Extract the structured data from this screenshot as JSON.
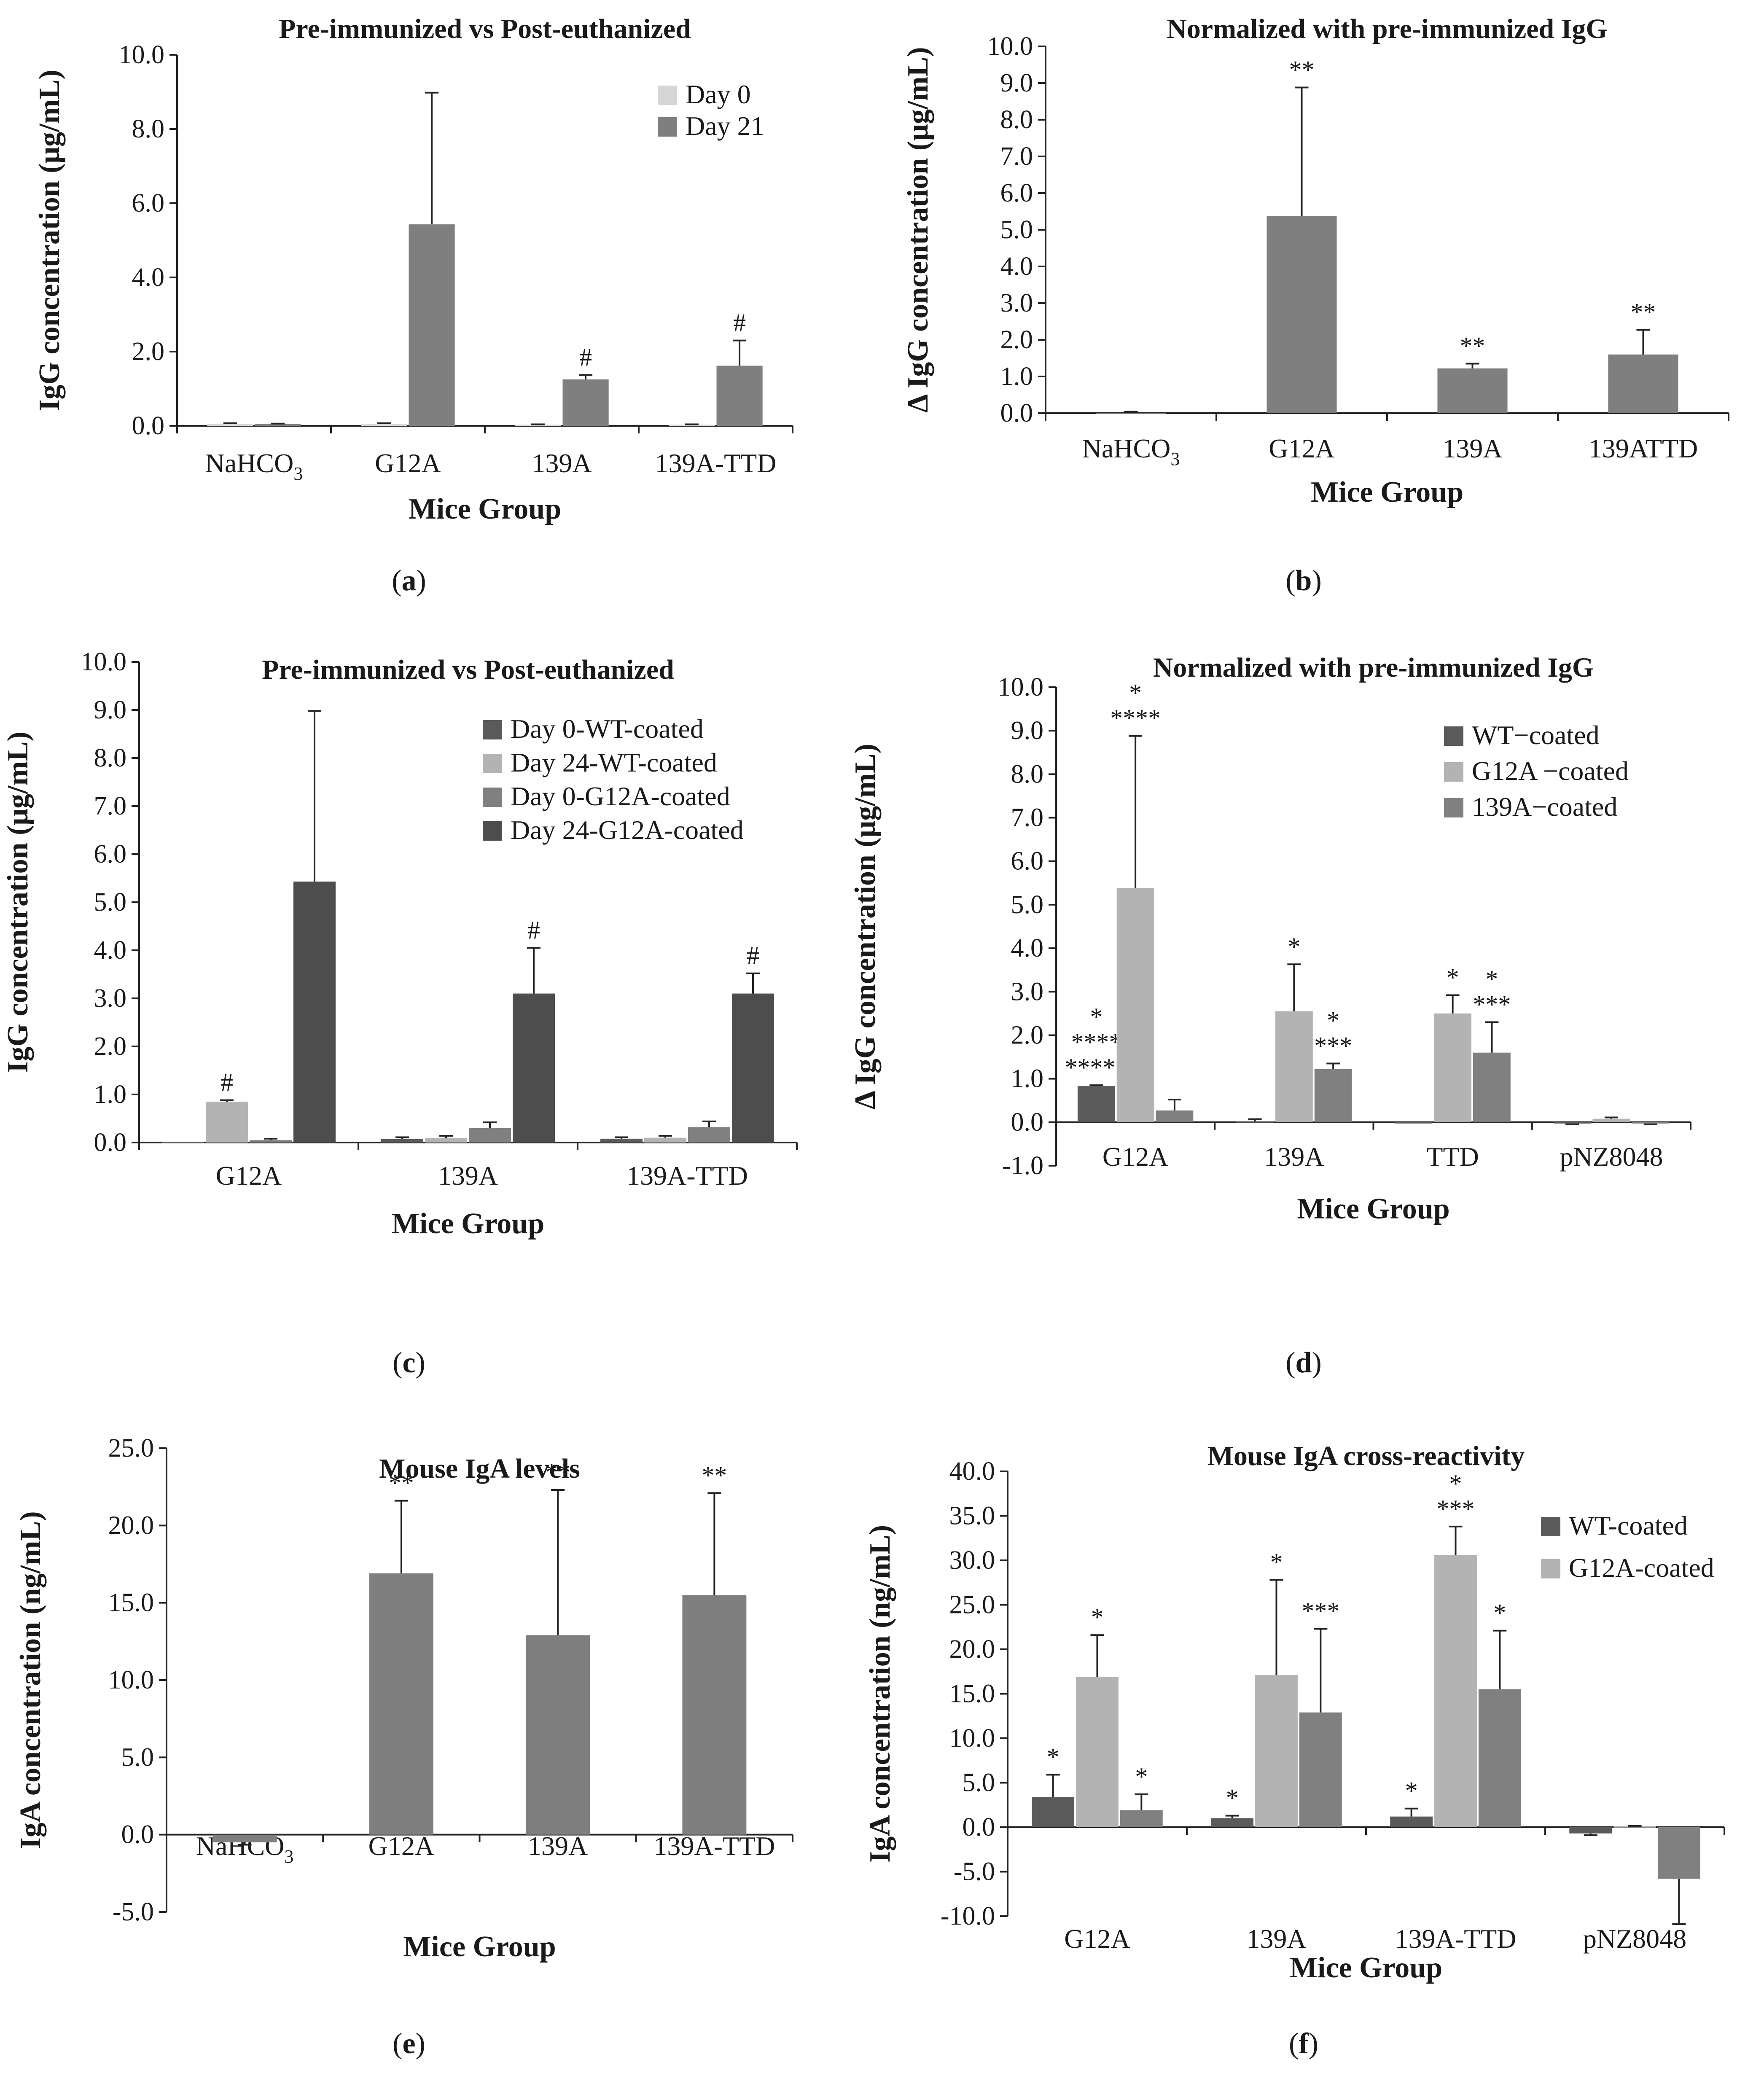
{
  "colors": {
    "day0_light": "#d6d6d6",
    "grey_mid": "#7f7f7f",
    "dark": "#4d4d4d",
    "light": "#b3b3b3",
    "grey_mid2": "#8c8c8c"
  },
  "chart_data": [
    {
      "id": "a",
      "caption": "(a)",
      "type": "bar",
      "title": "Pre-immunized vs Post-euthanized",
      "xlabel": "Mice Group",
      "ylabel": "IgG concentration (μg/mL)",
      "ylim": [
        0,
        10
      ],
      "yticks": [
        "0.0",
        "2.0",
        "4.0",
        "6.0",
        "8.0",
        "10.0"
      ],
      "categories": [
        {
          "base": "NaHCO",
          "sub": "3"
        },
        {
          "base": "G12A"
        },
        {
          "base": "139A"
        },
        {
          "base": "139A-TTD"
        }
      ],
      "legend": "top-right",
      "series": [
        {
          "name": "Day 0",
          "color": "#d6d6d6",
          "values": [
            0.05,
            0.05,
            0.03,
            0.03
          ],
          "errors": [
            0.02,
            0.02,
            0.01,
            0.01
          ],
          "annotations": [
            "",
            "",
            "",
            ""
          ]
        },
        {
          "name": "Day 21",
          "color": "#7f7f7f",
          "values": [
            0.05,
            5.43,
            1.25,
            1.62
          ],
          "errors": [
            0.01,
            3.55,
            0.12,
            0.68
          ],
          "annotations": [
            "",
            "",
            "#",
            "#"
          ]
        }
      ]
    },
    {
      "id": "b",
      "caption": "(b)",
      "type": "bar",
      "title": "Normalized with pre-immunized IgG",
      "xlabel": "Mice Group",
      "ylabel": "Δ IgG concentration (μg/mL)",
      "ylim": [
        0,
        10
      ],
      "yticks": [
        "0.0",
        "1.0",
        "2.0",
        "3.0",
        "4.0",
        "5.0",
        "6.0",
        "7.0",
        "8.0",
        "9.0",
        "10.0"
      ],
      "categories": [
        {
          "base": "NaHCO",
          "sub": "3"
        },
        {
          "base": "G12A"
        },
        {
          "base": "139A"
        },
        {
          "base": "139ATTD"
        }
      ],
      "series": [
        {
          "name": "",
          "color": "#7f7f7f",
          "values": [
            0.01,
            5.38,
            1.22,
            1.6
          ],
          "errors": [
            0.03,
            3.5,
            0.13,
            0.67
          ],
          "annotations": [
            "",
            "**",
            "**",
            "**"
          ]
        }
      ]
    },
    {
      "id": "c",
      "caption": "(c)",
      "type": "bar",
      "title": "Pre-immunized vs Post-euthanized",
      "xlabel": "Mice Group",
      "ylabel": "IgG concentration (μg/mL)",
      "ylim": [
        0,
        10
      ],
      "yticks": [
        "0.0",
        "1.0",
        "2.0",
        "3.0",
        "4.0",
        "5.0",
        "6.0",
        "7.0",
        "8.0",
        "9.0",
        "10.0"
      ],
      "categories": [
        {
          "base": "G12A"
        },
        {
          "base": "139A"
        },
        {
          "base": "139A-TTD"
        }
      ],
      "legend": "top-right",
      "series": [
        {
          "name": "Day 0-WT-coated",
          "color": "#5a5a5a",
          "values": [
            0.01,
            0.07,
            0.08
          ],
          "errors": [
            0.0,
            0.04,
            0.03
          ],
          "annotations": [
            "",
            "",
            ""
          ]
        },
        {
          "name": "Day 24-WT-coated",
          "color": "#b3b3b3",
          "values": [
            0.85,
            0.09,
            0.1
          ],
          "errors": [
            0.03,
            0.05,
            0.04
          ],
          "annotations": [
            "#",
            "",
            ""
          ]
        },
        {
          "name": "Day 0-G12A-coated",
          "color": "#808080",
          "values": [
            0.05,
            0.3,
            0.32
          ],
          "errors": [
            0.03,
            0.12,
            0.12
          ],
          "annotations": [
            "",
            "",
            ""
          ]
        },
        {
          "name": "Day 24-G12A-coated",
          "color": "#4d4d4d",
          "values": [
            5.43,
            3.1,
            3.1
          ],
          "errors": [
            3.55,
            0.95,
            0.42
          ],
          "annotations": [
            "",
            "#",
            "#"
          ]
        }
      ]
    },
    {
      "id": "d",
      "caption": "(d)",
      "type": "bar",
      "title": "Normalized with pre-immunized IgG",
      "xlabel": "Mice Group",
      "ylabel": "Δ IgG concentration (μg/mL)",
      "ylim": [
        -1,
        10
      ],
      "yticks": [
        "-1.0",
        "0.0",
        "1.0",
        "2.0",
        "3.0",
        "4.0",
        "5.0",
        "6.0",
        "7.0",
        "8.0",
        "9.0",
        "10.0"
      ],
      "categories": [
        {
          "base": "G12A"
        },
        {
          "base": "139A"
        },
        {
          "base": "TTD"
        },
        {
          "base": "pNZ8048"
        }
      ],
      "legend": "top-right",
      "series": [
        {
          "name": "WT−coated",
          "color": "#5a5a5a",
          "values": [
            0.83,
            0.02,
            0.0,
            -0.03
          ],
          "errors": [
            0.02,
            0.05,
            0.0,
            0.02
          ],
          "annotations": [
            "*\n****\n*****",
            "",
            "",
            ""
          ]
        },
        {
          "name": "G12A −coated",
          "color": "#b3b3b3",
          "values": [
            5.38,
            2.55,
            2.5,
            0.08
          ],
          "errors": [
            3.5,
            1.08,
            0.42,
            0.03
          ],
          "annotations": [
            "*\n****",
            "*",
            "*",
            ""
          ]
        },
        {
          "name": "139A−coated",
          "color": "#808080",
          "values": [
            0.27,
            1.22,
            1.6,
            -0.03
          ],
          "errors": [
            0.25,
            0.13,
            0.7,
            0.02
          ],
          "annotations": [
            "",
            "*\n***",
            "*\n***",
            ""
          ]
        }
      ]
    },
    {
      "id": "e",
      "caption": "(e)",
      "type": "bar",
      "title": "Mouse IgA levels",
      "xlabel": "Mice Group",
      "ylabel": "IgA concentration (ng/mL)",
      "ylim": [
        -5,
        25
      ],
      "yticks": [
        "-5.0",
        "0.0",
        "5.0",
        "10.0",
        "15.0",
        "20.0",
        "25.0"
      ],
      "categories": [
        {
          "base": "NaHCO",
          "sub": "3"
        },
        {
          "base": "G12A"
        },
        {
          "base": "139A"
        },
        {
          "base": "139A-TTD"
        }
      ],
      "series": [
        {
          "name": "",
          "color": "#7f7f7f",
          "values": [
            -0.5,
            16.9,
            12.9,
            15.5
          ],
          "errors": [
            0.15,
            4.7,
            9.4,
            6.6
          ],
          "annotations": [
            "",
            "**",
            "**",
            "**"
          ]
        }
      ]
    },
    {
      "id": "f",
      "caption": "(f)",
      "type": "bar",
      "title": "Mouse IgA cross-reactivity",
      "xlabel": "Mice Group",
      "ylabel": "IgA concentration (ng/mL)",
      "ylim": [
        -10,
        40
      ],
      "yticks": [
        "-10.0",
        "-5.0",
        "0.0",
        "5.0",
        "10.0",
        "15.0",
        "20.0",
        "25.0",
        "30.0",
        "35.0",
        "40.0"
      ],
      "categories": [
        {
          "base": "G12A"
        },
        {
          "base": "139A"
        },
        {
          "base": "139A-TTD"
        },
        {
          "base": "pNZ8048"
        }
      ],
      "legend": "top-right",
      "series": [
        {
          "name": "WT-coated",
          "color": "#5a5a5a",
          "values": [
            3.4,
            1.0,
            1.2,
            -0.7
          ],
          "errors": [
            2.5,
            0.3,
            0.9,
            0.2
          ],
          "annotations": [
            "*",
            "*",
            "*",
            ""
          ],
          "legend": true
        },
        {
          "name": "G12A-coated",
          "color": "#b3b3b3",
          "values": [
            16.9,
            17.1,
            30.6,
            0.1
          ],
          "errors": [
            4.7,
            10.7,
            3.2,
            0.05
          ],
          "annotations": [
            "*",
            "*",
            "*\n***",
            ""
          ],
          "legend": true
        },
        {
          "name": "",
          "color": "#808080",
          "values": [
            1.9,
            12.9,
            15.5,
            -5.8
          ],
          "errors": [
            1.8,
            9.4,
            6.6,
            5.1
          ],
          "annotations": [
            "*",
            "***",
            "*",
            ""
          ],
          "legend": false
        }
      ]
    }
  ]
}
